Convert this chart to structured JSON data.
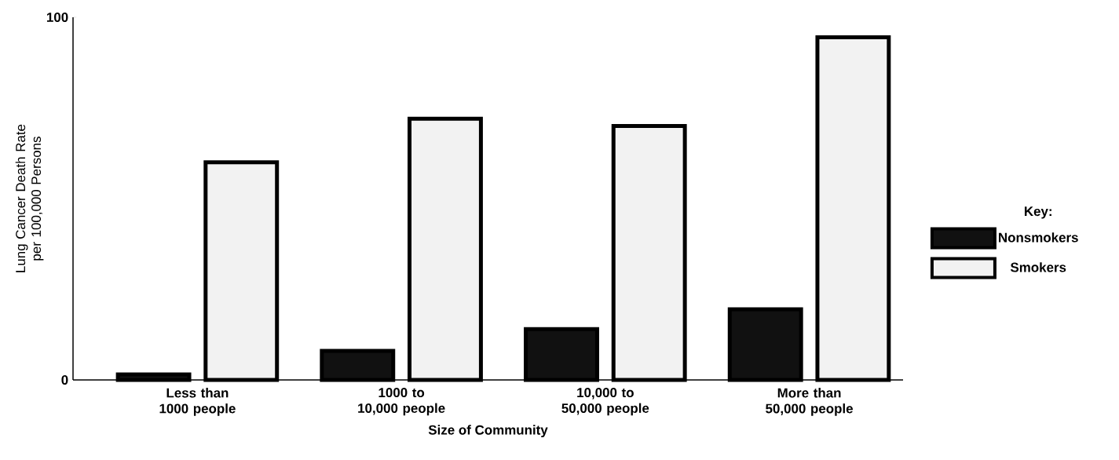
{
  "chart_data": {
    "type": "bar",
    "xlabel": "Size of Community",
    "ylabel": "Lung Cancer Death Rate per 100,000 Persons",
    "categories": [
      "Less than 1000 people",
      "1000 to 10,000 people",
      "10,000 to 50,000 people",
      "More than 50,000 people"
    ],
    "series": [
      {
        "name": "Nonsmokers",
        "color": "#111111",
        "values": [
          1.5,
          8,
          14,
          19.5
        ]
      },
      {
        "name": "Smokers",
        "color": "#f2f2f2",
        "values": [
          60,
          72,
          70,
          94.5
        ]
      }
    ],
    "ylim": [
      0,
      100
    ],
    "yticks": [
      0,
      100
    ],
    "grid": false,
    "legend": "right",
    "legend_title": "Key:"
  }
}
